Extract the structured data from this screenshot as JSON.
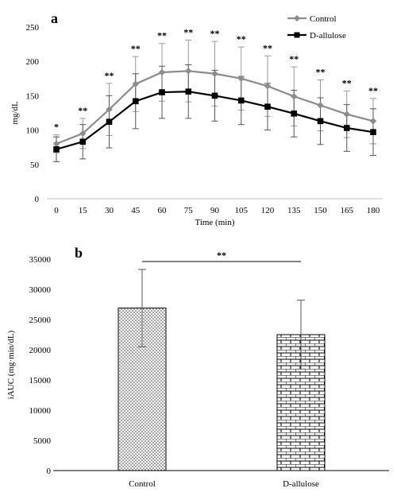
{
  "chart_data": [
    {
      "type": "line",
      "panel_label": "a",
      "xlabel": "Time (min)",
      "ylabel": "mg/dL",
      "x": [
        0,
        15,
        30,
        45,
        60,
        75,
        90,
        105,
        120,
        135,
        150,
        165,
        180
      ],
      "ylim": [
        0,
        250
      ],
      "yticks": [
        0,
        50,
        100,
        150,
        200,
        250
      ],
      "grid": false,
      "legend_position": "top-right",
      "series": [
        {
          "name": "Control",
          "color": "#8c8c8c",
          "marker": "diamond",
          "values": [
            80,
            95,
            130,
            167,
            184,
            186,
            182,
            175,
            164,
            149,
            136,
            123,
            113
          ],
          "error": [
            13,
            22,
            38,
            40,
            42,
            45,
            47,
            46,
            44,
            43,
            37,
            34,
            33
          ]
        },
        {
          "name": "D-allulose",
          "color": "#000000",
          "marker": "square",
          "values": [
            72,
            83,
            112,
            142,
            155,
            156,
            150,
            143,
            134,
            124,
            113,
            103,
            97
          ],
          "error": [
            18,
            25,
            38,
            40,
            38,
            39,
            37,
            35,
            34,
            34,
            34,
            34,
            34
          ]
        }
      ],
      "annotations": [
        "*",
        "**",
        "**",
        "**",
        "**",
        "**",
        "**",
        "**",
        "**",
        "**",
        "**",
        "**",
        "**"
      ]
    },
    {
      "type": "bar",
      "panel_label": "b",
      "ylabel": "iAUC (mg·min/dL)",
      "categories": [
        "Control",
        "D-allulose"
      ],
      "values": [
        26900,
        22500
      ],
      "error": [
        6400,
        5700
      ],
      "ylim": [
        0,
        35000
      ],
      "yticks": [
        0,
        5000,
        10000,
        15000,
        20000,
        25000,
        30000,
        35000
      ],
      "grid": false,
      "significance": "**"
    }
  ]
}
